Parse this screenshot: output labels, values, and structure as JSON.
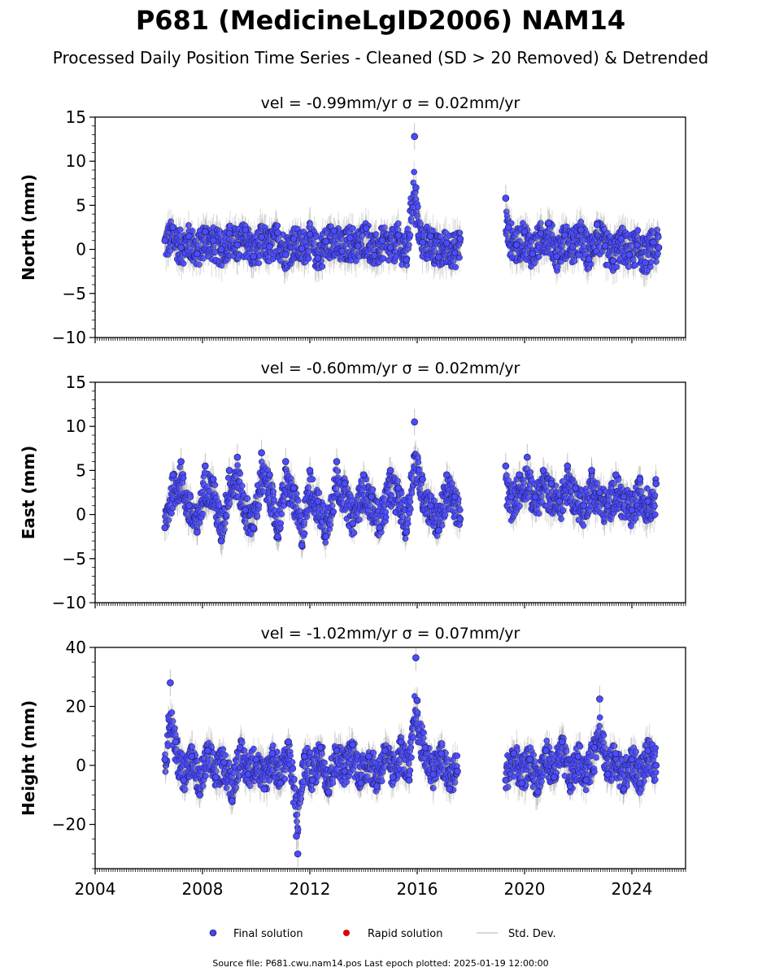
{
  "chart_data": {
    "type": "scatter",
    "title": "P681 (MedicineLgID2006) NAM14",
    "subtitle": "Processed Daily Position Time Series - Cleaned (SD > 20 Removed) & Detrended",
    "x_ticks": [
      "2004",
      "2008",
      "2012",
      "2016",
      "2020",
      "2024"
    ],
    "x_range": [
      2004.0,
      2026.0
    ],
    "panels": [
      {
        "ylabel": "North (mm)",
        "velocity_text": "vel = -0.99mm/yr   σ = 0.02mm/yr",
        "ylim": [
          -10,
          15
        ],
        "y_ticks": [
          "15",
          "10",
          "5",
          "0",
          "−5",
          "−10"
        ],
        "series": [
          {
            "x": 2006.6,
            "y": 1.0
          },
          {
            "x": 2006.9,
            "y": 2.5
          },
          {
            "x": 2007.2,
            "y": 0.2
          },
          {
            "x": 2007.5,
            "y": 1.5
          },
          {
            "x": 2007.8,
            "y": -0.5
          },
          {
            "x": 2008.1,
            "y": 2.0
          },
          {
            "x": 2008.4,
            "y": 1.0
          },
          {
            "x": 2008.7,
            "y": 0.0
          },
          {
            "x": 2009.0,
            "y": 1.8
          },
          {
            "x": 2009.3,
            "y": 0.5
          },
          {
            "x": 2009.6,
            "y": 2.2
          },
          {
            "x": 2009.9,
            "y": -0.8
          },
          {
            "x": 2010.2,
            "y": 1.4
          },
          {
            "x": 2010.5,
            "y": 0.3
          },
          {
            "x": 2010.8,
            "y": 1.9
          },
          {
            "x": 2011.1,
            "y": -0.6
          },
          {
            "x": 2011.4,
            "y": 1.2
          },
          {
            "x": 2011.7,
            "y": 0.1
          },
          {
            "x": 2012.0,
            "y": 1.7
          },
          {
            "x": 2012.3,
            "y": -1.0
          },
          {
            "x": 2012.6,
            "y": 0.9
          },
          {
            "x": 2012.9,
            "y": 2.1
          },
          {
            "x": 2013.2,
            "y": -0.2
          },
          {
            "x": 2013.5,
            "y": 1.3
          },
          {
            "x": 2013.8,
            "y": 0.4
          },
          {
            "x": 2014.1,
            "y": 2.4
          },
          {
            "x": 2014.4,
            "y": -0.7
          },
          {
            "x": 2014.7,
            "y": 1.0
          },
          {
            "x": 2015.0,
            "y": 0.2
          },
          {
            "x": 2015.3,
            "y": 1.6
          },
          {
            "x": 2015.6,
            "y": -1.2
          },
          {
            "x": 2015.9,
            "y": 12.8
          },
          {
            "x": 2015.95,
            "y": 7.0
          },
          {
            "x": 2016.2,
            "y": 0.8
          },
          {
            "x": 2016.5,
            "y": 1.5
          },
          {
            "x": 2016.8,
            "y": -0.9
          },
          {
            "x": 2017.1,
            "y": 0.7
          },
          {
            "x": 2017.4,
            "y": -0.4
          },
          {
            "x": 2017.6,
            "y": 1.2
          },
          {
            "x": 2019.3,
            "y": 5.8
          },
          {
            "x": 2019.4,
            "y": 2.5
          },
          {
            "x": 2019.7,
            "y": 0.5
          },
          {
            "x": 2020.0,
            "y": 2.0
          },
          {
            "x": 2020.3,
            "y": -0.5
          },
          {
            "x": 2020.6,
            "y": 1.8
          },
          {
            "x": 2020.9,
            "y": 3.0
          },
          {
            "x": 2021.2,
            "y": -0.8
          },
          {
            "x": 2021.5,
            "y": 1.6
          },
          {
            "x": 2021.8,
            "y": 0.3
          },
          {
            "x": 2022.1,
            "y": 2.2
          },
          {
            "x": 2022.4,
            "y": -1.1
          },
          {
            "x": 2022.7,
            "y": 2.8
          },
          {
            "x": 2023.0,
            "y": 0.4
          },
          {
            "x": 2023.3,
            "y": -1.3
          },
          {
            "x": 2023.6,
            "y": 1.2
          },
          {
            "x": 2023.9,
            "y": -0.6
          },
          {
            "x": 2024.2,
            "y": 0.5
          },
          {
            "x": 2024.5,
            "y": -1.5
          },
          {
            "x": 2024.8,
            "y": 0.8
          },
          {
            "x": 2025.0,
            "y": 0.2
          }
        ]
      },
      {
        "ylabel": "East (mm)",
        "velocity_text": "vel = -0.60mm/yr   σ = 0.02mm/yr",
        "ylim": [
          -10,
          15
        ],
        "y_ticks": [
          "15",
          "10",
          "5",
          "0",
          "−5",
          "−10"
        ],
        "series": [
          {
            "x": 2006.6,
            "y": -1.5
          },
          {
            "x": 2006.9,
            "y": 4.5
          },
          {
            "x": 2007.2,
            "y": 6.0
          },
          {
            "x": 2007.5,
            "y": 1.0
          },
          {
            "x": 2007.8,
            "y": -2.0
          },
          {
            "x": 2008.1,
            "y": 5.5
          },
          {
            "x": 2008.4,
            "y": 4.0
          },
          {
            "x": 2008.7,
            "y": -3.0
          },
          {
            "x": 2009.0,
            "y": 5.0
          },
          {
            "x": 2009.3,
            "y": 6.5
          },
          {
            "x": 2009.6,
            "y": 0.5
          },
          {
            "x": 2009.9,
            "y": -1.5
          },
          {
            "x": 2010.2,
            "y": 7.0
          },
          {
            "x": 2010.5,
            "y": 4.5
          },
          {
            "x": 2010.8,
            "y": -2.5
          },
          {
            "x": 2011.1,
            "y": 6.0
          },
          {
            "x": 2011.4,
            "y": 3.0
          },
          {
            "x": 2011.7,
            "y": -3.5
          },
          {
            "x": 2012.0,
            "y": 5.0
          },
          {
            "x": 2012.3,
            "y": 1.5
          },
          {
            "x": 2012.6,
            "y": -2.5
          },
          {
            "x": 2013.0,
            "y": 6.0
          },
          {
            "x": 2013.3,
            "y": 3.5
          },
          {
            "x": 2013.6,
            "y": -1.0
          },
          {
            "x": 2014.0,
            "y": 4.5
          },
          {
            "x": 2014.3,
            "y": 2.0
          },
          {
            "x": 2014.6,
            "y": -1.5
          },
          {
            "x": 2015.0,
            "y": 5.0
          },
          {
            "x": 2015.3,
            "y": 3.0
          },
          {
            "x": 2015.6,
            "y": -2.0
          },
          {
            "x": 2015.9,
            "y": 10.5
          },
          {
            "x": 2016.2,
            "y": 4.0
          },
          {
            "x": 2016.5,
            "y": 1.0
          },
          {
            "x": 2016.8,
            "y": -1.8
          },
          {
            "x": 2017.1,
            "y": 4.5
          },
          {
            "x": 2017.4,
            "y": 2.0
          },
          {
            "x": 2017.6,
            "y": -0.5
          },
          {
            "x": 2019.3,
            "y": 5.5
          },
          {
            "x": 2019.5,
            "y": 2.0
          },
          {
            "x": 2019.8,
            "y": 4.5
          },
          {
            "x": 2020.1,
            "y": 6.5
          },
          {
            "x": 2020.4,
            "y": 2.0
          },
          {
            "x": 2020.7,
            "y": 5.0
          },
          {
            "x": 2021.0,
            "y": 3.5
          },
          {
            "x": 2021.3,
            "y": 1.5
          },
          {
            "x": 2021.6,
            "y": 5.5
          },
          {
            "x": 2021.9,
            "y": 3.0
          },
          {
            "x": 2022.2,
            "y": 1.0
          },
          {
            "x": 2022.5,
            "y": 5.0
          },
          {
            "x": 2022.8,
            "y": 2.5
          },
          {
            "x": 2023.1,
            "y": 1.0
          },
          {
            "x": 2023.4,
            "y": 4.5
          },
          {
            "x": 2023.7,
            "y": 2.0
          },
          {
            "x": 2024.0,
            "y": 0.5
          },
          {
            "x": 2024.3,
            "y": 4.0
          },
          {
            "x": 2024.6,
            "y": 1.5
          },
          {
            "x": 2024.9,
            "y": 3.5
          }
        ]
      },
      {
        "ylabel": "Height (mm)",
        "velocity_text": "vel = -1.02mm/yr   σ = 0.07mm/yr",
        "ylim": [
          -35,
          40
        ],
        "y_ticks": [
          "40",
          "20",
          "0",
          "−20"
        ],
        "series": [
          {
            "x": 2006.6,
            "y": 2.0
          },
          {
            "x": 2006.8,
            "y": 28.0
          },
          {
            "x": 2007.0,
            "y": 8.0
          },
          {
            "x": 2007.3,
            "y": -5.0
          },
          {
            "x": 2007.6,
            "y": 3.0
          },
          {
            "x": 2007.9,
            "y": -10.0
          },
          {
            "x": 2008.2,
            "y": 5.0
          },
          {
            "x": 2008.5,
            "y": -4.0
          },
          {
            "x": 2008.8,
            "y": 1.0
          },
          {
            "x": 2009.1,
            "y": -12.0
          },
          {
            "x": 2009.4,
            "y": 6.0
          },
          {
            "x": 2009.7,
            "y": -3.0
          },
          {
            "x": 2010.0,
            "y": 2.0
          },
          {
            "x": 2010.3,
            "y": -8.0
          },
          {
            "x": 2010.6,
            "y": 4.0
          },
          {
            "x": 2010.9,
            "y": -6.0
          },
          {
            "x": 2011.2,
            "y": 8.0
          },
          {
            "x": 2011.5,
            "y": -24.0
          },
          {
            "x": 2011.55,
            "y": -30.0
          },
          {
            "x": 2011.8,
            "y": 3.0
          },
          {
            "x": 2012.1,
            "y": -5.0
          },
          {
            "x": 2012.4,
            "y": 6.0
          },
          {
            "x": 2012.7,
            "y": -9.0
          },
          {
            "x": 2013.0,
            "y": 5.0
          },
          {
            "x": 2013.3,
            "y": -2.0
          },
          {
            "x": 2013.6,
            "y": 7.0
          },
          {
            "x": 2013.9,
            "y": -6.0
          },
          {
            "x": 2014.2,
            "y": 3.0
          },
          {
            "x": 2014.5,
            "y": -7.0
          },
          {
            "x": 2014.8,
            "y": 5.0
          },
          {
            "x": 2015.1,
            "y": -4.0
          },
          {
            "x": 2015.4,
            "y": 8.0
          },
          {
            "x": 2015.7,
            "y": -5.0
          },
          {
            "x": 2015.95,
            "y": 36.5
          },
          {
            "x": 2016.0,
            "y": 22.0
          },
          {
            "x": 2016.3,
            "y": 6.0
          },
          {
            "x": 2016.6,
            "y": -3.0
          },
          {
            "x": 2016.9,
            "y": 4.0
          },
          {
            "x": 2017.2,
            "y": -8.0
          },
          {
            "x": 2017.5,
            "y": -2.0
          },
          {
            "x": 2019.3,
            "y": -5.0
          },
          {
            "x": 2019.6,
            "y": 4.0
          },
          {
            "x": 2019.9,
            "y": -6.0
          },
          {
            "x": 2020.2,
            "y": 2.0
          },
          {
            "x": 2020.5,
            "y": -9.0
          },
          {
            "x": 2020.8,
            "y": 5.0
          },
          {
            "x": 2021.1,
            "y": -4.0
          },
          {
            "x": 2021.4,
            "y": 8.0
          },
          {
            "x": 2021.7,
            "y": -7.0
          },
          {
            "x": 2022.0,
            "y": 3.0
          },
          {
            "x": 2022.3,
            "y": -5.0
          },
          {
            "x": 2022.6,
            "y": 6.0
          },
          {
            "x": 2022.8,
            "y": 22.5
          },
          {
            "x": 2023.1,
            "y": -3.0
          },
          {
            "x": 2023.4,
            "y": 4.0
          },
          {
            "x": 2023.7,
            "y": -8.0
          },
          {
            "x": 2024.0,
            "y": 2.0
          },
          {
            "x": 2024.3,
            "y": -6.0
          },
          {
            "x": 2024.6,
            "y": 5.0
          },
          {
            "x": 2024.9,
            "y": 0.0
          }
        ]
      }
    ],
    "legend": {
      "position": "bottom-center",
      "items": [
        {
          "label": "Final solution",
          "color": "#4444ff"
        },
        {
          "label": "Rapid solution",
          "color": "#dd0000"
        },
        {
          "label": "Std. Dev.",
          "color": "#cccccc"
        }
      ]
    },
    "footer": "Source file: P681.cwu.nam14.pos  Last epoch plotted: 2025-01-19 12:00:00"
  }
}
